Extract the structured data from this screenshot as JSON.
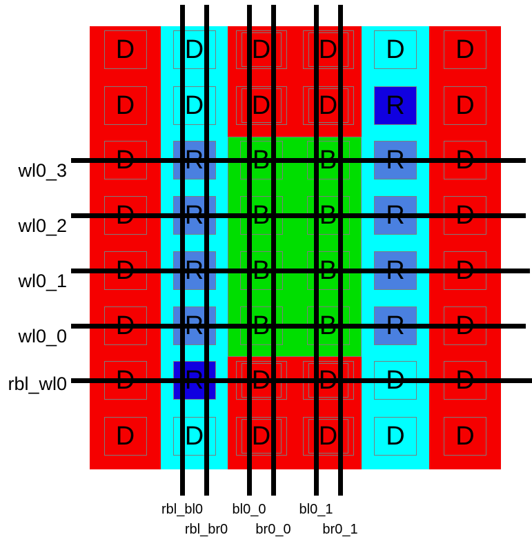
{
  "colors": {
    "red": "#f50000",
    "cyan": "#00ffff",
    "green": "#00de00",
    "replica_blue": "#4a80e0",
    "replica_dark_blue": "#1000e0",
    "outline_gray": "#7d7d7d",
    "line_black": "#000000",
    "text_black": "#000000",
    "background_white": "#ffffff"
  },
  "regions": [
    {
      "name": "left-dummy-column",
      "fill": "red",
      "cols": [
        0,
        1
      ],
      "rows": [
        0,
        8
      ]
    },
    {
      "name": "replica-column",
      "fill": "cyan",
      "cols": [
        1,
        2
      ],
      "rows": [
        0,
        8
      ]
    },
    {
      "name": "core-top-dummy-strip",
      "fill": "red",
      "cols": [
        2,
        4
      ],
      "rows": [
        0,
        2
      ]
    },
    {
      "name": "bitcell-core",
      "fill": "green",
      "cols": [
        2,
        4
      ],
      "rows": [
        2,
        6
      ],
      "outlined": true
    },
    {
      "name": "core-bottom-dummy-strip",
      "fill": "red",
      "cols": [
        2,
        4
      ],
      "rows": [
        6,
        8
      ]
    },
    {
      "name": "right-replica-column",
      "fill": "cyan",
      "cols": [
        4,
        5
      ],
      "rows": [
        0,
        8
      ]
    },
    {
      "name": "right-dummy-column",
      "fill": "red",
      "cols": [
        5,
        6
      ],
      "rows": [
        0,
        8
      ]
    }
  ],
  "cells": [
    [
      {
        "letter": "D",
        "fill": "none"
      },
      {
        "letter": "D",
        "fill": "none"
      },
      {
        "letter": "D",
        "fill": "none",
        "nested": true
      },
      {
        "letter": "D",
        "fill": "none",
        "nested": true
      },
      {
        "letter": "D",
        "fill": "none"
      },
      {
        "letter": "D",
        "fill": "none"
      }
    ],
    [
      {
        "letter": "D",
        "fill": "none"
      },
      {
        "letter": "D",
        "fill": "none"
      },
      {
        "letter": "D",
        "fill": "none",
        "nested": true
      },
      {
        "letter": "D",
        "fill": "none",
        "nested": true
      },
      {
        "letter": "R",
        "fill": "darkblue"
      },
      {
        "letter": "D",
        "fill": "none"
      }
    ],
    [
      {
        "letter": "D",
        "fill": "none"
      },
      {
        "letter": "R",
        "fill": "blue"
      },
      {
        "letter": "B",
        "fill": "none"
      },
      {
        "letter": "B",
        "fill": "none"
      },
      {
        "letter": "R",
        "fill": "blue"
      },
      {
        "letter": "D",
        "fill": "none"
      }
    ],
    [
      {
        "letter": "D",
        "fill": "none"
      },
      {
        "letter": "R",
        "fill": "blue"
      },
      {
        "letter": "B",
        "fill": "none"
      },
      {
        "letter": "B",
        "fill": "none"
      },
      {
        "letter": "R",
        "fill": "blue"
      },
      {
        "letter": "D",
        "fill": "none"
      }
    ],
    [
      {
        "letter": "D",
        "fill": "none"
      },
      {
        "letter": "R",
        "fill": "blue"
      },
      {
        "letter": "B",
        "fill": "none"
      },
      {
        "letter": "B",
        "fill": "none"
      },
      {
        "letter": "R",
        "fill": "blue"
      },
      {
        "letter": "D",
        "fill": "none"
      }
    ],
    [
      {
        "letter": "D",
        "fill": "none"
      },
      {
        "letter": "R",
        "fill": "blue"
      },
      {
        "letter": "B",
        "fill": "none"
      },
      {
        "letter": "B",
        "fill": "none"
      },
      {
        "letter": "R",
        "fill": "blue"
      },
      {
        "letter": "D",
        "fill": "none"
      }
    ],
    [
      {
        "letter": "D",
        "fill": "none"
      },
      {
        "letter": "R",
        "fill": "darkblue"
      },
      {
        "letter": "D",
        "fill": "none",
        "nested": true
      },
      {
        "letter": "D",
        "fill": "none",
        "nested": true
      },
      {
        "letter": "D",
        "fill": "none"
      },
      {
        "letter": "D",
        "fill": "none"
      }
    ],
    [
      {
        "letter": "D",
        "fill": "none"
      },
      {
        "letter": "D",
        "fill": "none"
      },
      {
        "letter": "D",
        "fill": "none",
        "nested": true
      },
      {
        "letter": "D",
        "fill": "none",
        "nested": true
      },
      {
        "letter": "D",
        "fill": "none"
      },
      {
        "letter": "D",
        "fill": "none"
      }
    ]
  ],
  "wordlines": [
    {
      "label": "wl0_3",
      "row": 2
    },
    {
      "label": "wl0_2",
      "row": 3
    },
    {
      "label": "wl0_1",
      "row": 4
    },
    {
      "label": "wl0_0",
      "row": 5
    },
    {
      "label": "rbl_wl0",
      "row": 6
    }
  ],
  "bitlines": [
    {
      "label": "rbl_bl0",
      "col": 1,
      "pos": "left",
      "label_row": 1
    },
    {
      "label": "rbl_br0",
      "col": 1,
      "pos": "right",
      "label_row": 2
    },
    {
      "label": "bl0_0",
      "col": 2,
      "pos": "left",
      "label_row": 1
    },
    {
      "label": "br0_0",
      "col": 2,
      "pos": "right",
      "label_row": 2
    },
    {
      "label": "bl0_1",
      "col": 3,
      "pos": "left",
      "label_row": 1
    },
    {
      "label": "br0_1",
      "col": 3,
      "pos": "right",
      "label_row": 2
    }
  ]
}
